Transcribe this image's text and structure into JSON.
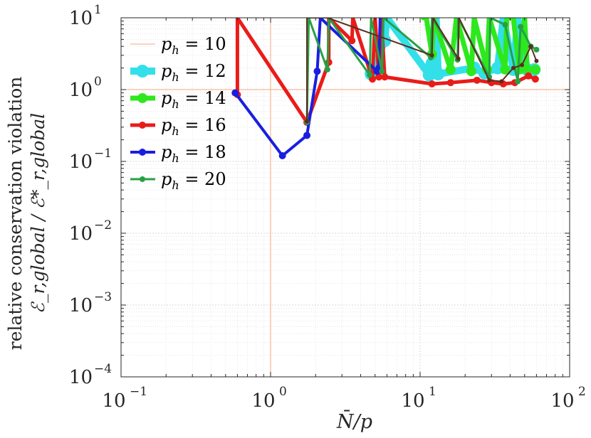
{
  "chart_data": {
    "type": "line",
    "xscale": "log",
    "yscale": "log",
    "xlim": [
      0.1,
      100
    ],
    "ylim": [
      0.0001,
      10
    ],
    "grid": true,
    "legend_placement": "top-left",
    "xlabel": "N̄/p",
    "ylabel_line1": "relative conservation violation",
    "ylabel_line2": "ℰ_r,global / ℰ*_r,global",
    "x_ticks": [
      {
        "base": "10",
        "exp": "−1",
        "value": 0.1
      },
      {
        "base": "10",
        "exp": "0",
        "value": 1
      },
      {
        "base": "10",
        "exp": "1",
        "value": 10
      },
      {
        "base": "10",
        "exp": "2",
        "value": 100
      }
    ],
    "y_ticks": [
      {
        "base": "10",
        "exp": "−4",
        "value": 0.0001
      },
      {
        "base": "10",
        "exp": "−3",
        "value": 0.001
      },
      {
        "base": "10",
        "exp": "−2",
        "value": 0.01
      },
      {
        "base": "10",
        "exp": "−1",
        "value": 0.1
      },
      {
        "base": "10",
        "exp": "0",
        "value": 1
      },
      {
        "base": "10",
        "exp": "1",
        "value": 10
      }
    ],
    "reference_lines": {
      "x": 1,
      "y": 1,
      "color": "#f4a582"
    },
    "series": [
      {
        "name": "p_h = 10",
        "label_sub": "h",
        "label_value": "= 10",
        "color": "#f4a582",
        "width": 1,
        "marker": 0,
        "x": [],
        "y": []
      },
      {
        "name": "p_h = 12",
        "label_sub": "h",
        "label_value": "= 12",
        "color": "#33e0ea",
        "width": 10,
        "marker": 9,
        "x": [
          4.7,
          5.8,
          6.0,
          11.5,
          12.0,
          12.8,
          13.2,
          23,
          27,
          33,
          36,
          42,
          45,
          52,
          58
        ],
        "y": [
          1.65,
          4.8,
          10,
          1.6,
          2.3,
          10,
          1.65,
          2.0,
          1.7,
          2.0,
          10,
          1.9,
          10,
          1.9,
          1.9
        ]
      },
      {
        "name": "p_h = 14",
        "label_sub": "h",
        "label_value": "= 14",
        "color": "#2ee81e",
        "width": 7,
        "marker": 7,
        "x": [
          10.5,
          11.0,
          12.0,
          12.3,
          16,
          17.5,
          22,
          23,
          28,
          29,
          37,
          38,
          42,
          46,
          50,
          52,
          59
        ],
        "y": [
          10,
          10,
          3.1,
          10,
          1.9,
          10,
          1.8,
          10,
          1.9,
          10,
          1.9,
          10,
          10,
          1.9,
          10,
          1.9,
          1.9
        ]
      },
      {
        "name": "p_h = 16",
        "label_sub": "h",
        "label_value": "= 16",
        "color": "#e91c18",
        "width": 5,
        "marker": 5,
        "x": [
          0.58,
          0.6,
          0.6,
          1.75,
          2.45,
          2.45,
          3.5,
          3.55,
          4.8,
          5.0,
          5.3,
          5.5,
          5.8,
          12,
          16,
          24,
          30,
          36,
          43,
          53,
          59
        ],
        "y": [
          0.9,
          0.85,
          10,
          0.35,
          2.4,
          10,
          4.8,
          10,
          1.4,
          10,
          1.5,
          10,
          1.5,
          1.2,
          1.25,
          1.35,
          1.25,
          1.2,
          1.25,
          1.55,
          1.4
        ]
      },
      {
        "name": "p_h = 18",
        "label_sub": "h",
        "label_value": "= 18",
        "color": "#1a1ee0",
        "width": 4,
        "marker": 5,
        "x": [
          0.58,
          1.2,
          1.75,
          2.05,
          2.15,
          5.15,
          5.3,
          5.4
        ],
        "y": [
          0.9,
          0.12,
          0.23,
          1.8,
          10,
          1.8,
          2.0,
          10
        ]
      },
      {
        "name": "p_h = 20",
        "label_sub": "h",
        "label_value": "= 20",
        "color": "#26a046",
        "width": 3,
        "marker": 4,
        "x": [
          1.75,
          1.8,
          2.4,
          2.45,
          4.6,
          4.7,
          5.55,
          5.7,
          11.8,
          12.0,
          17.8,
          18,
          29,
          29.5,
          37,
          45,
          47,
          55,
          60
        ],
        "y": [
          0.35,
          10,
          1.9,
          10,
          1.6,
          10,
          1.8,
          10,
          2.8,
          10,
          2.6,
          10,
          1.5,
          10,
          8.0,
          1.3,
          7.5,
          4.0,
          3.6
        ]
      },
      {
        "name": "",
        "color": "#5b2c1e",
        "width": 2,
        "marker": 3,
        "x": [
          1.75,
          1.75,
          2.4,
          12.0,
          12.2,
          18,
          18.2,
          29,
          35,
          42,
          48,
          55,
          60
        ],
        "y": [
          0.36,
          10,
          10,
          3.0,
          10,
          2.7,
          10,
          1.35,
          1.3,
          2.0,
          2.2,
          4.0,
          2.5
        ]
      }
    ]
  }
}
